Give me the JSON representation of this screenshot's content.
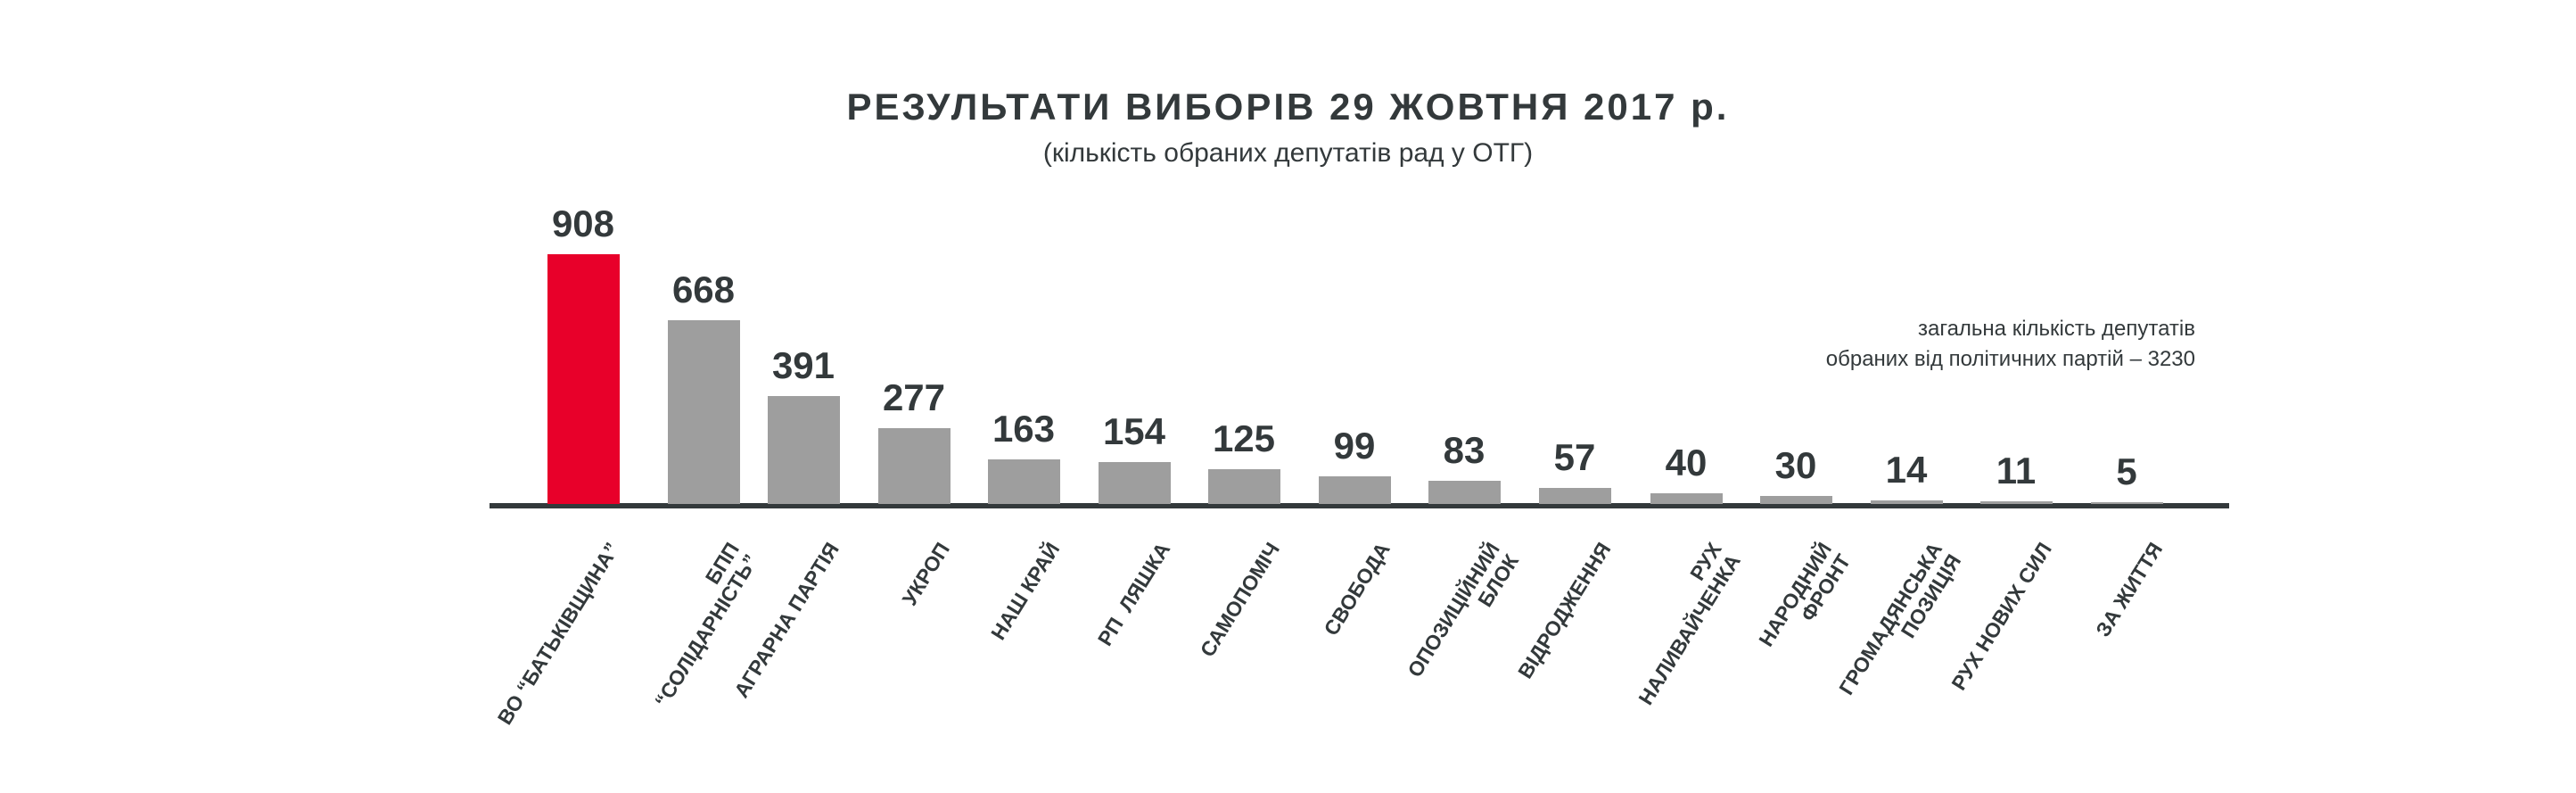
{
  "chart_data": {
    "type": "bar",
    "title": "РЕЗУЛЬТАТИ ВИБОРІВ 29 ЖОВТНЯ 2017 р.",
    "subtitle": "(кількість обраних депутатів рад у ОТГ)",
    "annotation": "загальна кількість депутатів\nобраних від політичних партій – 3230",
    "categories": [
      "ВО “БАТЬКІВЩИНА”",
      "БПП\n“СОЛІДАРНІСТЬ”",
      "АГРАРНА ПАРТІЯ",
      "УКРОП",
      "НАШ КРАЙ",
      "РП  ЛЯШКА",
      "САМОПОМІЧ",
      "СВОБОДА",
      "ОПОЗИЦІЙНИЙ\nБЛОК",
      "ВІДРОДЖЕННЯ",
      "РУХ\nНАЛИВАЙЧЕНКА",
      "НАРОДНИЙ\nФРОНТ",
      "ГРОМАДЯНСЬКА\nПОЗИЦІЯ",
      "РУХ НОВИХ СИЛ",
      "ЗА ЖИТТЯ"
    ],
    "values": [
      908,
      668,
      391,
      277,
      163,
      154,
      125,
      99,
      83,
      57,
      40,
      30,
      14,
      11,
      5
    ],
    "data_labels": [
      "908",
      "668",
      "391",
      "277",
      "163",
      "154",
      "125",
      "99",
      "83",
      "57",
      "40",
      "30",
      "14",
      "11",
      "5"
    ],
    "ylim": [
      0,
      908
    ],
    "grid": false,
    "colors": {
      "highlight": "#e8002a",
      "bar": "#9e9e9e",
      "text": "#33393b",
      "axis": "#33393b"
    }
  }
}
